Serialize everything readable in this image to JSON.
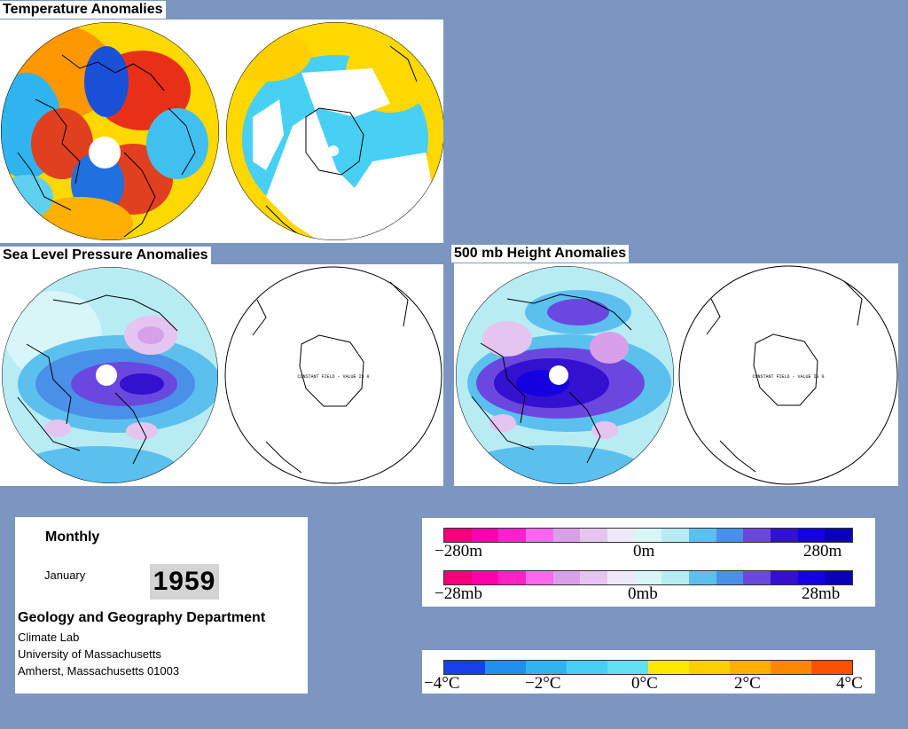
{
  "sections": {
    "temperature_title": "Temperature Anomalies",
    "slp_title": "Sea Level Pressure Anomalies",
    "height_title": "500 mb Height Anomalies"
  },
  "maps": {
    "constant_field_label": "CONSTANT FIELD - VALUE IS 0"
  },
  "info": {
    "period": "Monthly",
    "month": "January",
    "year": "1959",
    "department": "Geology and Geography Department",
    "lab": "Climate Lab",
    "university": "University of Massachusetts",
    "address": "Amherst, Massachusetts 01003"
  },
  "legend_height": {
    "min_label": "−280m",
    "mid_label": "0m",
    "max_label": "280m",
    "colors": [
      "#f4007a",
      "#ff00aa",
      "#ff20c8",
      "#ff66ee",
      "#d8a0e8",
      "#e6c4f0",
      "#eee8f8",
      "#d8f6f8",
      "#b8ecf4",
      "#5cc0ee",
      "#4a90e8",
      "#6a48e0",
      "#3410d0",
      "#1400e0",
      "#0a00b8"
    ]
  },
  "legend_pressure": {
    "min_label": "−28mb",
    "mid_label": "0mb",
    "max_label": "28mb",
    "colors": [
      "#f4007a",
      "#ff00aa",
      "#ff20c8",
      "#ff66ee",
      "#d8a0e8",
      "#e6c4f0",
      "#eee8f8",
      "#d8f6f8",
      "#b8ecf4",
      "#5cc0ee",
      "#4a90e8",
      "#6a48e0",
      "#3410d0",
      "#1400e0",
      "#0a00b8"
    ]
  },
  "legend_temperature": {
    "labels": [
      "−4°C",
      "−2°C",
      "0°C",
      "2°C",
      "4°C"
    ],
    "colors": [
      "#1840e8",
      "#2090f0",
      "#30b4f0",
      "#48d0f4",
      "#60e0f0",
      "#ffe800",
      "#ffd000",
      "#ffb000",
      "#ff8800",
      "#ff5000"
    ]
  }
}
